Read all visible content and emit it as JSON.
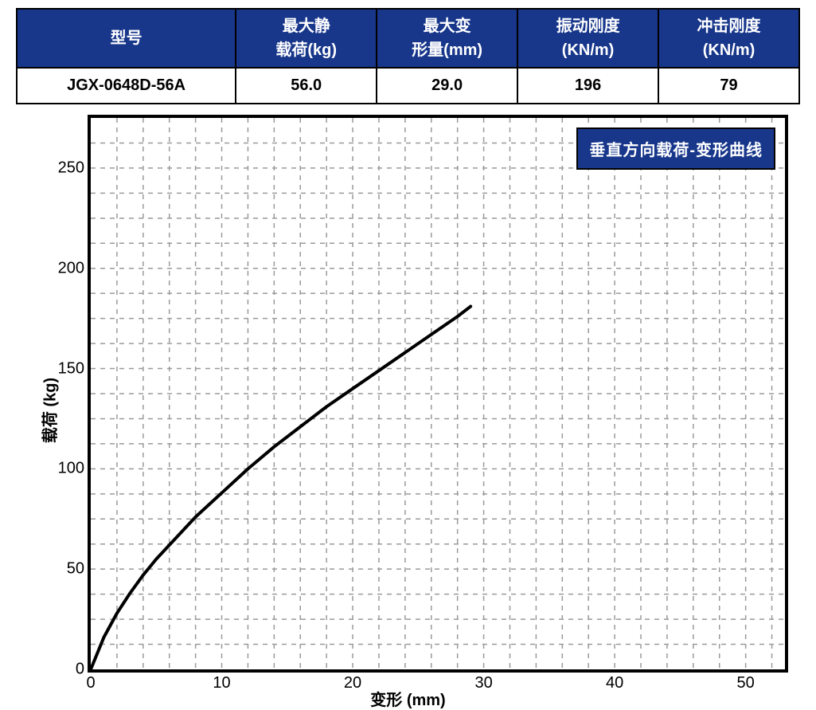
{
  "table": {
    "headers": [
      "型号",
      "最大静\n载荷(kg)",
      "最大变\n形量(mm)",
      "振动刚度\n(KN/m)",
      "冲击刚度\n(KN/m)"
    ],
    "row": [
      "JGX-0648D-56A",
      "56.0",
      "29.0",
      "196",
      "79"
    ],
    "col_widths_pct": [
      28,
      18,
      18,
      18,
      18
    ],
    "header_bg": "#18378b",
    "header_fg": "#ffffff",
    "border_color": "#000000"
  },
  "chart": {
    "type": "line",
    "title_box": "垂直方向载荷-变形曲线",
    "title_box_bg": "#18378b",
    "title_box_fg": "#ffffff",
    "xlabel": "变形 (mm)",
    "ylabel": "载荷 (kg)",
    "xlim": [
      0,
      53
    ],
    "ylim": [
      0,
      275
    ],
    "xticks": [
      0,
      10,
      20,
      30,
      40,
      50
    ],
    "yticks": [
      0,
      50,
      100,
      150,
      200,
      250
    ],
    "minor_x_step": 2,
    "minor_y_step": 12.5,
    "grid_color": "#9a9a9a",
    "grid_dash": "6,6",
    "background": "#ffffff",
    "border_color": "#000000",
    "border_width": 4,
    "line_color": "#000000",
    "line_width": 4,
    "label_fontsize": 20,
    "tick_fontsize": 20,
    "series": {
      "x": [
        0,
        0.5,
        1,
        1.5,
        2,
        3,
        4,
        5,
        6,
        7,
        8,
        9,
        10,
        12,
        14,
        16,
        18,
        20,
        22,
        24,
        26,
        28,
        29
      ],
      "y": [
        0,
        8,
        16,
        22,
        28,
        38,
        47,
        55,
        62,
        69,
        76,
        82,
        88,
        100,
        111,
        121,
        131,
        140,
        149,
        158,
        167,
        176,
        181
      ]
    }
  }
}
